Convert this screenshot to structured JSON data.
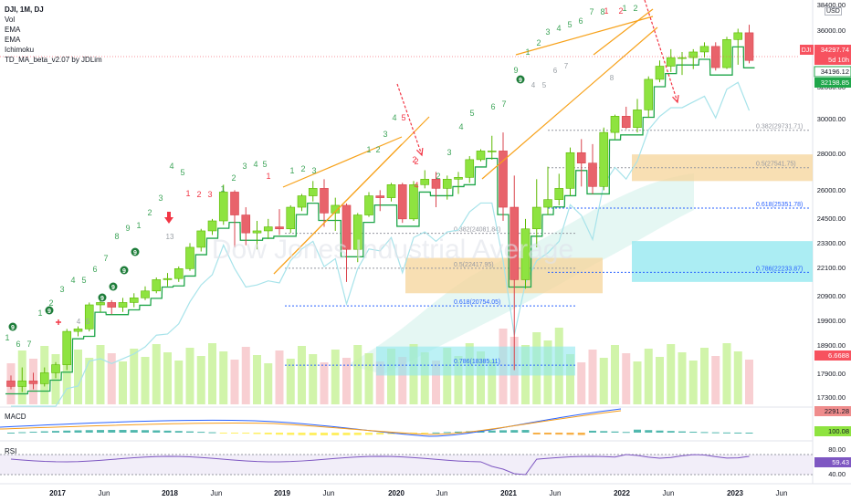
{
  "legend": {
    "symbol": "DJI, 1M, DJ",
    "indicators": [
      "Vol",
      "EMA",
      "EMA",
      "Ichimoku",
      "TD_MA_beta_v2.07 by JDLim"
    ]
  },
  "currency": "USD",
  "watermark": "Dow Jones Industrial Average",
  "colors": {
    "up": "#8ee340",
    "down": "#e8636b",
    "step": "#1fa64a",
    "orange": "#f7a21b",
    "arrow": "#f23645",
    "fib_blue": "#2962ff",
    "fib_gray": "#9598a1",
    "zone_orange": "#f5d49a",
    "zone_cyan": "#8fe7ef"
  },
  "price_axis": {
    "ticks": [
      "38400.00",
      "36000.00",
      "32000.00",
      "30000.00",
      "28000.00",
      "26000.00",
      "24500.00",
      "23300.00",
      "22100.00",
      "20900.00",
      "19900.00",
      "18900.00",
      "17900.00",
      "17300.00"
    ],
    "badges": [
      {
        "label": "34297.74",
        "sub": "DJI",
        "color": "#f7525f"
      },
      {
        "label": "5d 10h",
        "sub": "",
        "color": "#f7525f"
      },
      {
        "label": "34196.12",
        "sub": "",
        "color": "#ffffff"
      },
      {
        "label": "32198.85",
        "sub": "",
        "color": "#1fa64a"
      },
      {
        "label": "6.6688",
        "sub": "",
        "color": "#f7525f"
      }
    ]
  },
  "time_axis": [
    "2017",
    "Jun",
    "2018",
    "Jun",
    "2019",
    "Jun",
    "2020",
    "Jun",
    "2021",
    "Jun",
    "2022",
    "Jun",
    "2023",
    "Jun"
  ],
  "fib_levels": [
    {
      "label": "0.382(29731.71)",
      "value": 29731.71
    },
    {
      "label": "0.5(27541.75)",
      "value": 27541.75
    },
    {
      "label": "0.618(25351.78)",
      "value": 25351.78
    },
    {
      "label": "0.786(22233.87)",
      "value": 22233.87
    },
    {
      "label": "0.382(24081.84)",
      "value": 24081.84
    },
    {
      "label": "0.5(22417.95)",
      "value": 22417.95
    },
    {
      "label": "0.618(20754.05)",
      "value": 20754.05
    },
    {
      "label": "0.786(18385.11)",
      "value": 18385.11
    }
  ],
  "td_counts": {
    "up_a": [
      "4",
      "5",
      "6",
      "7",
      "8",
      "9",
      "1",
      "2",
      "3",
      "4",
      "5",
      "6",
      "7",
      "8",
      "9",
      "1",
      "2",
      "3",
      "4",
      "5"
    ],
    "down_a": [
      "1",
      "2",
      "3",
      "4",
      "5"
    ],
    "up_b": [
      "1",
      "2",
      "3",
      "4",
      "5",
      "6",
      "7",
      "8",
      "9",
      "1",
      "2",
      "3",
      "4",
      "5"
    ],
    "down_b": [
      "1",
      "2",
      "3",
      "4",
      "5"
    ],
    "up_c": [
      "3",
      "4",
      "5",
      "6",
      "7",
      "8",
      "9",
      "1",
      "2",
      "3",
      "4",
      "5",
      "6",
      "7",
      "8",
      "1",
      "2"
    ],
    "extra": [
      "13",
      "2",
      "1",
      "1",
      "2",
      "4",
      "5",
      "6",
      "7",
      "8"
    ]
  },
  "macd": {
    "label": "MACD",
    "value": "2291.28",
    "value2": "100.08"
  },
  "rsi": {
    "label": "RSI",
    "value": "59.43",
    "ticks": [
      "80.00",
      "40.00"
    ]
  },
  "chart_data": {
    "type": "candlestick",
    "title": "DJI, 1M, DJ",
    "series": [
      {
        "name": "DJI",
        "ohlc": [
          [
            17.8,
            17.6,
            18.0,
            17.5
          ],
          [
            17.6,
            17.8,
            18.3,
            17.4
          ],
          [
            17.8,
            17.7,
            18.1,
            17.5
          ],
          [
            17.7,
            18.1,
            18.3,
            17.6
          ],
          [
            18.1,
            18.4,
            18.5,
            17.9
          ],
          [
            18.4,
            19.7,
            19.8,
            18.2
          ],
          [
            19.7,
            19.8,
            19.9,
            19.5
          ],
          [
            19.8,
            20.8,
            20.9,
            19.7
          ],
          [
            20.8,
            20.9,
            21.2,
            20.5
          ],
          [
            20.9,
            20.7,
            21.0,
            20.4
          ],
          [
            20.7,
            20.9,
            21.1,
            20.5
          ],
          [
            20.9,
            21.1,
            21.3,
            20.7
          ],
          [
            21.1,
            21.4,
            21.6,
            21.0
          ],
          [
            21.4,
            21.9,
            22.0,
            21.3
          ],
          [
            21.9,
            21.95,
            22.2,
            21.6
          ],
          [
            21.95,
            22.4,
            22.5,
            21.8
          ],
          [
            22.4,
            23.4,
            23.6,
            22.3
          ],
          [
            23.4,
            24.2,
            24.3,
            23.2
          ],
          [
            24.2,
            24.7,
            24.8,
            24.0
          ],
          [
            24.7,
            26.2,
            26.6,
            24.5
          ],
          [
            26.2,
            25.0,
            26.3,
            23.4
          ],
          [
            25.0,
            24.1,
            25.4,
            23.5
          ],
          [
            24.1,
            24.2,
            24.7,
            23.3
          ],
          [
            24.2,
            24.4,
            24.8,
            23.8
          ],
          [
            24.4,
            24.3,
            25.3,
            24.0
          ],
          [
            24.3,
            25.4,
            25.5,
            24.1
          ],
          [
            25.4,
            26.0,
            26.1,
            25.2
          ],
          [
            26.0,
            26.4,
            26.8,
            25.7
          ],
          [
            26.4,
            25.1,
            26.9,
            24.4
          ],
          [
            25.1,
            25.5,
            25.9,
            24.2
          ],
          [
            25.5,
            23.3,
            25.6,
            21.8
          ],
          [
            23.3,
            25.0,
            25.1,
            22.7
          ],
          [
            25.0,
            26.0,
            26.2,
            24.9
          ],
          [
            26.0,
            25.9,
            26.3,
            25.2
          ],
          [
            25.9,
            26.6,
            26.7,
            25.7
          ],
          [
            26.6,
            24.8,
            26.7,
            24.6
          ],
          [
            24.8,
            26.6,
            26.8,
            24.7
          ],
          [
            26.6,
            26.9,
            27.4,
            26.4
          ],
          [
            26.9,
            26.4,
            27.3,
            25.4
          ],
          [
            26.4,
            26.9,
            27.1,
            25.8
          ],
          [
            26.9,
            27.0,
            27.3,
            26.1
          ],
          [
            27.0,
            28.0,
            28.2,
            26.7
          ],
          [
            28.0,
            28.5,
            28.6,
            27.9
          ],
          [
            28.5,
            28.5,
            29.4,
            28.0
          ],
          [
            28.5,
            25.4,
            29.6,
            24.7
          ],
          [
            25.4,
            21.9,
            27.1,
            18.2
          ],
          [
            21.9,
            24.3,
            24.8,
            21.5
          ],
          [
            24.3,
            25.4,
            26.9,
            23.4
          ],
          [
            25.4,
            25.8,
            27.6,
            25.0
          ],
          [
            25.8,
            26.4,
            27.2,
            25.5
          ],
          [
            26.4,
            28.4,
            28.7,
            26.0
          ],
          [
            28.4,
            27.8,
            29.2,
            26.5
          ],
          [
            27.8,
            26.5,
            28.9,
            26.1
          ],
          [
            26.5,
            29.6,
            29.9,
            26.3
          ],
          [
            29.6,
            30.6,
            30.7,
            29.2
          ],
          [
            30.6,
            29.9,
            31.2,
            29.8
          ],
          [
            29.9,
            31.0,
            31.7,
            29.6
          ],
          [
            31.0,
            33.0,
            33.2,
            30.5
          ],
          [
            33.0,
            33.9,
            34.3,
            32.8
          ],
          [
            33.9,
            34.5,
            35.1,
            33.5
          ],
          [
            34.5,
            34.5,
            34.9,
            33.3
          ],
          [
            34.5,
            34.9,
            35.1,
            33.7
          ],
          [
            34.9,
            35.3,
            35.6,
            34.5
          ],
          [
            35.3,
            33.8,
            35.6,
            33.6
          ],
          [
            33.8,
            35.8,
            36.0,
            33.7
          ],
          [
            35.8,
            36.3,
            36.6,
            34.0
          ],
          [
            36.3,
            34.3,
            36.9,
            34.1
          ]
        ]
      },
      {
        "name": "MACD",
        "values": [
          2291.28,
          100.08
        ]
      },
      {
        "name": "RSI",
        "values": [
          59.43
        ]
      }
    ],
    "x_range": [
      "2016-07",
      "2023-08"
    ],
    "ylabel": "USD",
    "log_scale": true,
    "grid": true,
    "annotations": [
      "0.382(29731.71)",
      "0.5(27541.75)",
      "0.618(25351.78)",
      "0.786(22233.87)",
      "0.382(24081.84)",
      "0.5(22417.95)",
      "0.618(20754.05)",
      "0.786(18385.11)"
    ]
  }
}
